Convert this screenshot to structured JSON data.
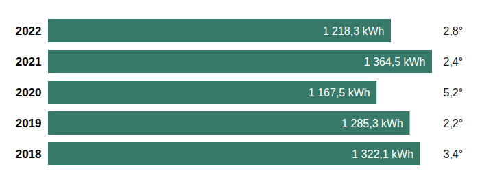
{
  "chart_data": {
    "type": "bar",
    "orientation": "horizontal",
    "categories": [
      "2022",
      "2021",
      "2020",
      "2019",
      "2018"
    ],
    "values": [
      1218.3,
      1364.5,
      1167.5,
      1285.3,
      1322.1
    ],
    "value_labels": [
      "1 218,3 kWh",
      "1 364,5 kWh",
      "1 167,5 kWh",
      "1 285,3 kWh",
      "1 322,1 kWh"
    ],
    "temperatures": [
      2.8,
      2.4,
      5.2,
      2.2,
      3.4
    ],
    "temperature_labels": [
      "2,8°",
      "2,4°",
      "5,2°",
      "2,2°",
      "3,4°"
    ],
    "color": "#377a6a",
    "xlim": [
      0,
      1364.5
    ],
    "data_labels": true,
    "tick_labels": "y",
    "grid": false
  }
}
